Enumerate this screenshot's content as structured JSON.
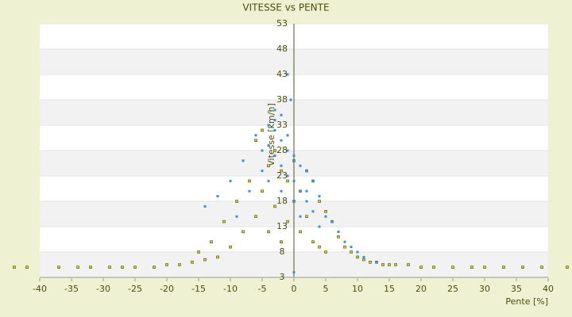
{
  "chart_data": {
    "type": "scatter",
    "title": "VITESSE vs PENTE",
    "x_label": "Pente [%]",
    "y_label": "Vitesse [km/h]",
    "xlim": [
      -40,
      40
    ],
    "xticks": [
      -40,
      -35,
      -30,
      -25,
      -20,
      -15,
      -10,
      -5,
      0,
      5,
      10,
      15,
      20,
      25,
      30,
      35,
      40
    ],
    "ylim": [
      3,
      53
    ],
    "yticks": [
      3,
      8,
      13,
      18,
      23,
      28,
      33,
      38,
      43,
      48,
      53
    ],
    "grid": true,
    "series": [
      {
        "color": "#c8c832",
        "x": [
          -44,
          -42,
          -37,
          -34,
          -32,
          -29,
          -27,
          -25,
          -22,
          -20,
          -18,
          -16,
          -15,
          -14,
          -13,
          -12,
          -11,
          -10,
          -9,
          -8,
          -7,
          -6,
          -6,
          -5,
          -5,
          -4,
          -4,
          -3,
          -3,
          -2,
          -2,
          -1,
          -1,
          0,
          0,
          1,
          1,
          2,
          2,
          3,
          3,
          4,
          4,
          5,
          5,
          6,
          7,
          8,
          9,
          10,
          11,
          12,
          13,
          14,
          15,
          16,
          18,
          20,
          22,
          25,
          28,
          30,
          33,
          36,
          39,
          43
        ],
        "y": [
          5,
          5,
          5,
          5,
          5,
          5,
          5,
          5,
          5,
          5.5,
          5.5,
          6,
          8,
          6.5,
          10,
          7,
          14,
          9,
          18,
          12,
          22,
          30,
          15,
          32,
          20,
          25,
          12,
          28,
          17,
          24,
          10,
          22,
          14,
          26,
          18,
          20,
          12,
          24,
          15,
          22,
          10,
          18,
          9,
          16,
          8,
          14,
          11,
          9,
          8,
          7,
          6.5,
          6,
          6,
          5.5,
          5.5,
          5.5,
          5.5,
          5,
          5,
          5,
          5,
          5,
          5,
          5,
          5,
          5
        ]
      },
      {
        "color": "#3c8ee0",
        "x": [
          -14,
          -12,
          -10,
          -9,
          -8,
          -7,
          -6,
          -5,
          -5,
          -4,
          -4,
          -3,
          -3,
          -2,
          -2,
          -2,
          -1,
          -1,
          -1,
          0,
          0,
          0,
          0,
          1,
          1,
          1,
          2,
          2,
          3,
          3,
          4,
          4,
          5,
          6,
          7,
          8,
          9,
          10,
          11,
          13,
          -3,
          -1,
          -4,
          -2,
          0,
          2,
          -3,
          -0.5
        ],
        "y": [
          17,
          19,
          22,
          15,
          26,
          20,
          31,
          28,
          24,
          33,
          22,
          34,
          27,
          30,
          25,
          20,
          28,
          23,
          43,
          26,
          22,
          18,
          4,
          25,
          20,
          15,
          24,
          18,
          22,
          16,
          19,
          13,
          15,
          14,
          12,
          10,
          9,
          8,
          7,
          6,
          36,
          31,
          29,
          35,
          27,
          20,
          32,
          38
        ]
      }
    ]
  }
}
